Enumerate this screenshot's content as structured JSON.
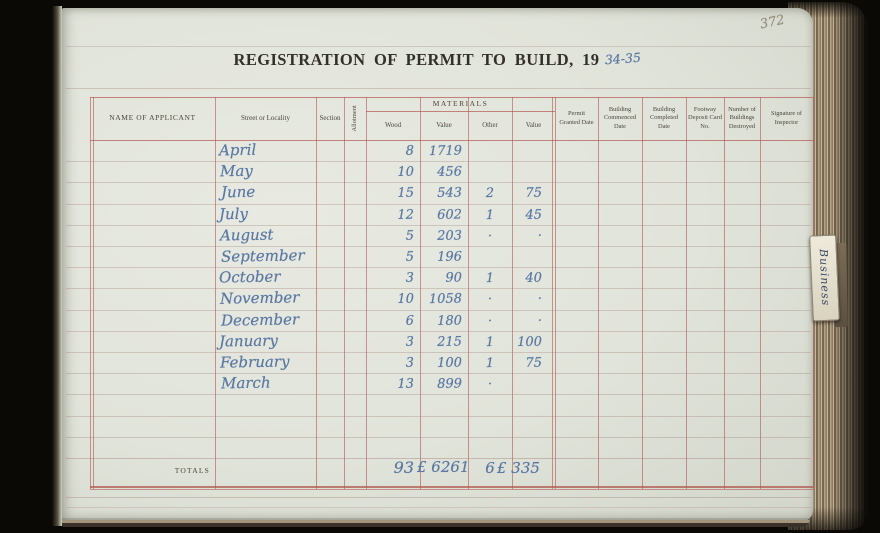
{
  "document": {
    "title": "REGISTRATION OF PERMIT TO BUILD, 19",
    "year_handwritten": "34-35",
    "page_number": "372",
    "side_tab": "Business"
  },
  "table": {
    "headers": {
      "applicant": "NAME OF APPLICANT",
      "street": "Street or Locality",
      "section": "Section",
      "allotment": "Allotment",
      "materials": "MATERIALS",
      "wood": "Wood",
      "value1": "Value",
      "other": "Other",
      "value2": "Value",
      "permit": "Permit Granted Date",
      "commenced": "Building Commenced Date",
      "completed": "Building Completed Date",
      "footway": "Footway Deposit Card No.",
      "destroyed": "Number of Buildings Destroyed",
      "signature": "Signature of Inspector"
    },
    "rows": [
      {
        "month": "April",
        "wood": "8",
        "wood_value": "1719",
        "other": "",
        "other_value": ""
      },
      {
        "month": "May",
        "wood": "10",
        "wood_value": "456",
        "other": "",
        "other_value": ""
      },
      {
        "month": "June",
        "wood": "15",
        "wood_value": "543",
        "other": "2",
        "other_value": "75"
      },
      {
        "month": "July",
        "wood": "12",
        "wood_value": "602",
        "other": "1",
        "other_value": "45"
      },
      {
        "month": "August",
        "wood": "5",
        "wood_value": "203",
        "other": "·",
        "other_value": "·"
      },
      {
        "month": "September",
        "wood": "5",
        "wood_value": "196",
        "other": "",
        "other_value": ""
      },
      {
        "month": "October",
        "wood": "3",
        "wood_value": "90",
        "other": "1",
        "other_value": "40"
      },
      {
        "month": "November",
        "wood": "10",
        "wood_value": "1058",
        "other": "·",
        "other_value": "·"
      },
      {
        "month": "December",
        "wood": "6",
        "wood_value": "180",
        "other": "·",
        "other_value": "·"
      },
      {
        "month": "January",
        "wood": "3",
        "wood_value": "215",
        "other": "1",
        "other_value": "100"
      },
      {
        "month": "February",
        "wood": "3",
        "wood_value": "100",
        "other": "1",
        "other_value": "75"
      },
      {
        "month": "March",
        "wood": "13",
        "wood_value": "899",
        "other": "·",
        "other_value": ""
      }
    ],
    "totals": {
      "label": "TOTALS",
      "wood": "93",
      "wood_value": "£ 6261",
      "other": "6",
      "other_value": "£ 335"
    }
  },
  "colors": {
    "ink_blue": "#5b79a4",
    "rule_red": "#b0584e",
    "rule_pink": "#a07873",
    "page": "#e1e4da",
    "pencil": "#97917e"
  }
}
